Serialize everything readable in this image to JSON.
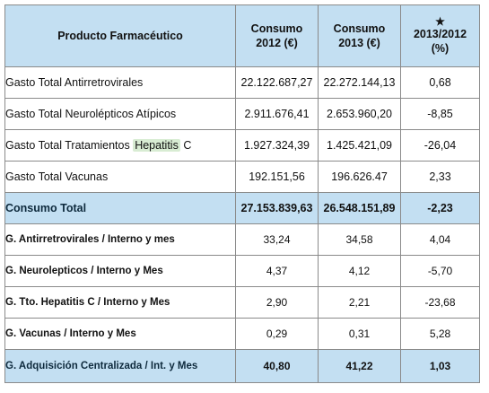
{
  "header": {
    "product": "Producto Farmacéutico",
    "col2012_line1": "Consumo",
    "col2012_line2": "2012 (€)",
    "col2013_line1": "Consumo",
    "col2013_line2": "2013 (€)",
    "pct_star": "★",
    "pct_line1": "2013/2012",
    "pct_line2": "(%)"
  },
  "rows": [
    {
      "label": "Gasto Total Antirretrovirales",
      "v2012": "22.122.687,27",
      "v2013": "22.272.144,13",
      "pct": "0,68"
    },
    {
      "label": "Gasto Total Neurolépticos Atípicos",
      "v2012": "2.911.676,41",
      "v2013": "2.653.960,20",
      "pct": "-8,85"
    },
    {
      "label_pre": "Gasto Total Tratamientos ",
      "label_hl": "Hepatitis",
      "label_post": " C",
      "v2012": "1.927.324,39",
      "v2013": "1.425.421,09",
      "pct": "-26,04"
    },
    {
      "label": "Gasto Total Vacunas",
      "v2012": "192.151,56",
      "v2013": "196.626.47",
      "pct": "2,33"
    },
    {
      "label": "Consumo Total",
      "v2012": "27.153.839,63",
      "v2013": "26.548.151,89",
      "pct": "-2,23"
    },
    {
      "label": "G. Antirretrovirales / Interno y mes",
      "v2012": "33,24",
      "v2013": "34,58",
      "pct": "4,04"
    },
    {
      "label": "G. Neurolepticos / Interno y Mes",
      "v2012": "4,37",
      "v2013": "4,12",
      "pct": "-5,70"
    },
    {
      "label": "G. Tto. Hepatitis C / Interno y Mes",
      "v2012": "2,90",
      "v2013": "2,21",
      "pct": "-23,68"
    },
    {
      "label": "G. Vacunas / Interno y Mes",
      "v2012": "0,29",
      "v2013": "0,31",
      "pct": "5,28"
    },
    {
      "label": "G. Adquisición Centralizada / Int. y Mes",
      "v2012": "40,80",
      "v2013": "41,22",
      "pct": "1,03"
    }
  ],
  "colors": {
    "header_bg": "#c3dff2",
    "highlight": "#d8ecd3",
    "border": "#8a8a8a"
  }
}
